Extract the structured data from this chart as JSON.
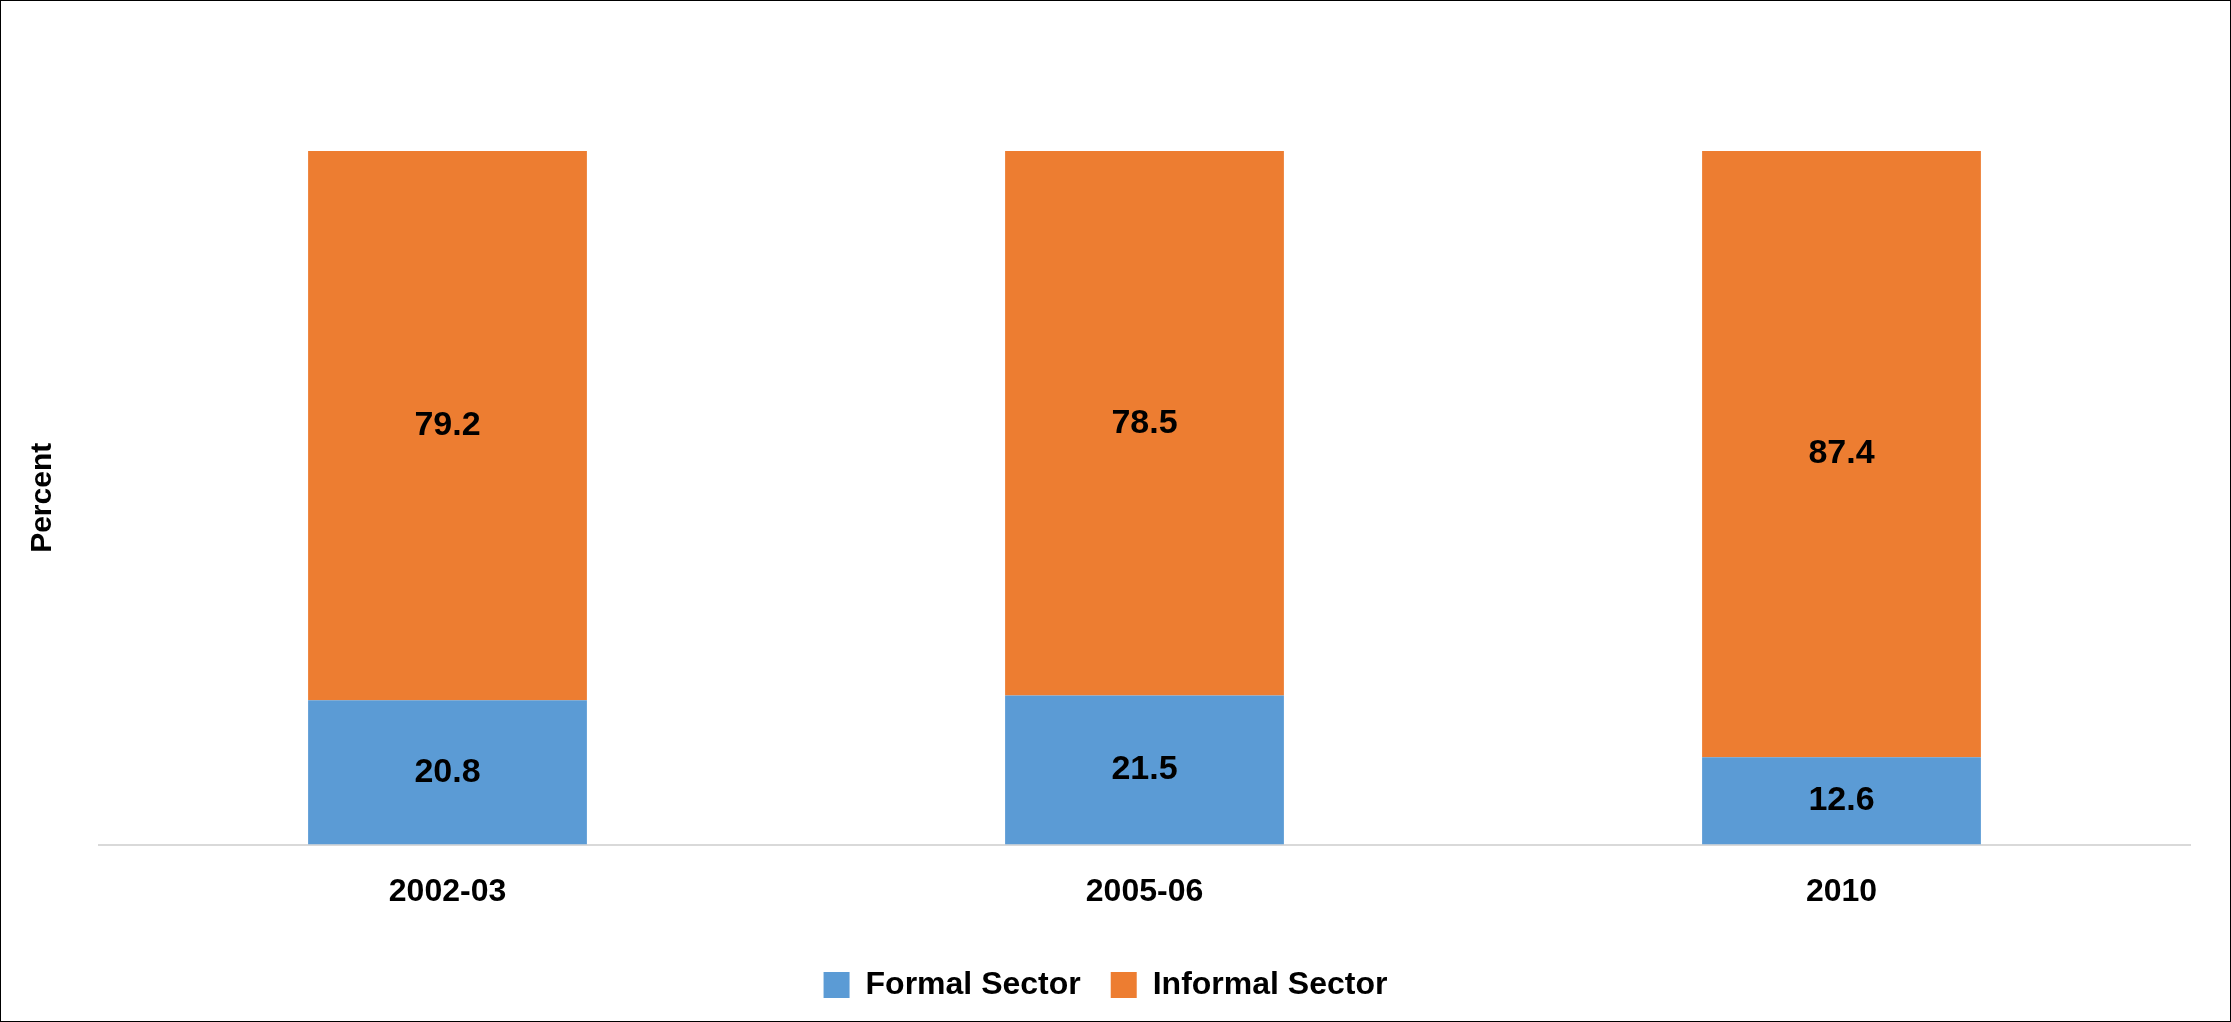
{
  "chart_data": {
    "type": "bar",
    "stacked": true,
    "ylabel": "Percent",
    "categories": [
      "2002-03",
      "2005-06",
      "2010"
    ],
    "series": [
      {
        "name": "Formal Sector",
        "color": "#5b9bd5",
        "values": [
          20.8,
          21.5,
          12.6
        ]
      },
      {
        "name": "Informal Sector",
        "color": "#ed7d31",
        "values": [
          79.2,
          78.5,
          87.4
        ]
      }
    ],
    "ylim": [
      0,
      100
    ],
    "tick_labels": "x",
    "data_labels": true,
    "legend": "bottom"
  }
}
